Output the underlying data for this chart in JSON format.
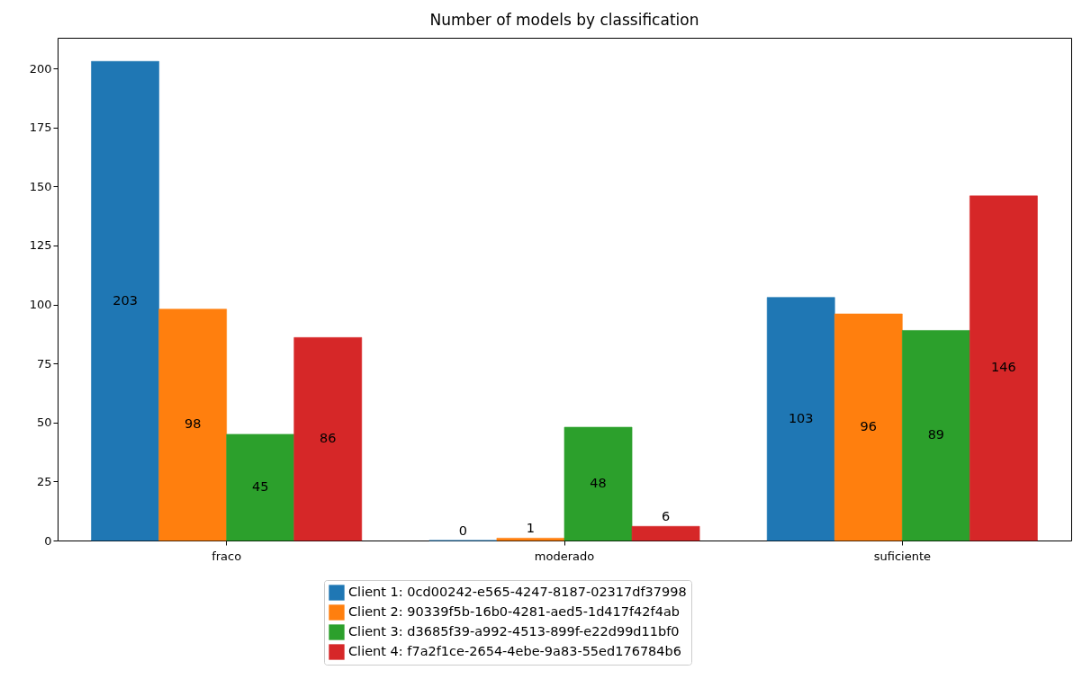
{
  "chart_data": {
    "type": "bar",
    "title": "Number of models by classification",
    "categories": [
      "fraco",
      "moderado",
      "suficiente"
    ],
    "series": [
      {
        "name": "Client 1: 0cd00242-e565-4247-8187-02317df37998",
        "color": "#1f77b4",
        "values": [
          203,
          0,
          103
        ]
      },
      {
        "name": "Client 2: 90339f5b-16b0-4281-aed5-1d417f42f4ab",
        "color": "#ff7f0e",
        "values": [
          98,
          1,
          96
        ]
      },
      {
        "name": "Client 3: d3685f39-a992-4513-899f-e22d99d11bf0",
        "color": "#2ca02c",
        "values": [
          45,
          48,
          89
        ]
      },
      {
        "name": "Client 4: f7a2f1ce-2654-4ebe-9a83-55ed176784b6",
        "color": "#d62728",
        "values": [
          86,
          6,
          146
        ]
      }
    ],
    "ylim": [
      0,
      213
    ],
    "yticks": [
      0,
      25,
      50,
      75,
      100,
      125,
      150,
      175,
      200
    ],
    "grid": false,
    "legend": "bottom",
    "data_labels": true
  }
}
